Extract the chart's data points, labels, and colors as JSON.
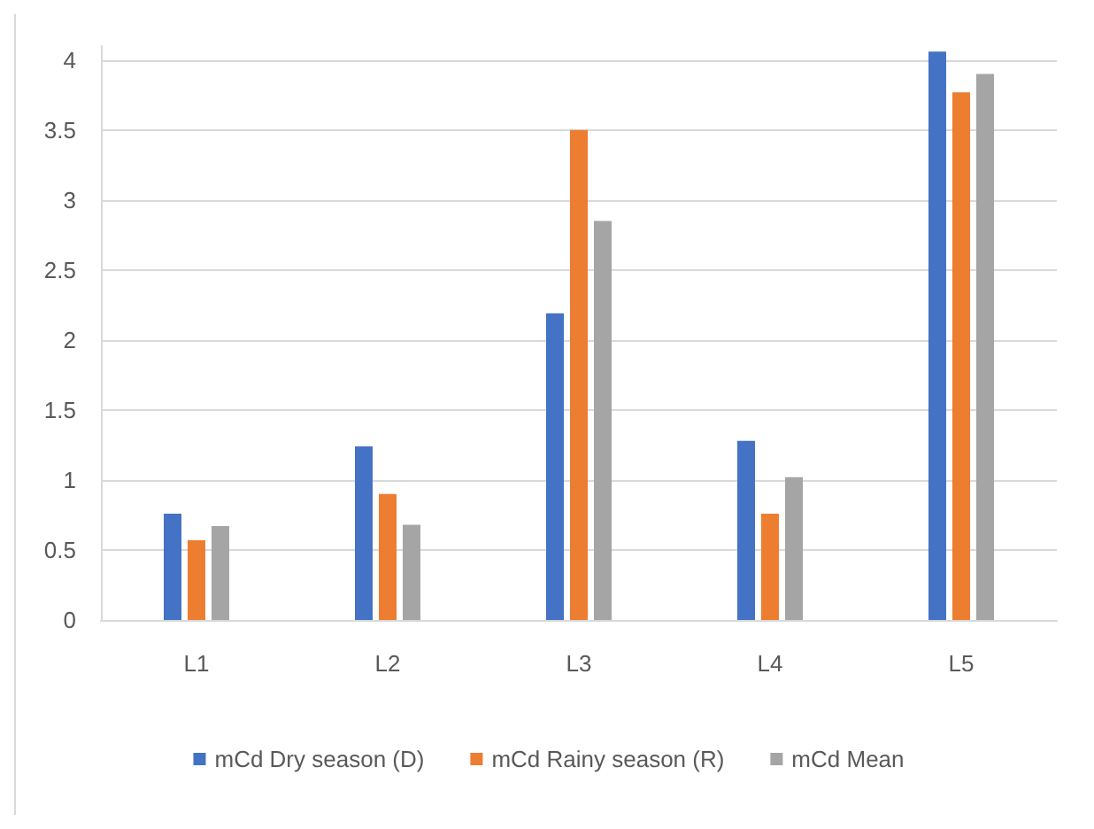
{
  "chart_data": {
    "type": "bar",
    "categories": [
      "L1",
      "L2",
      "L3",
      "L4",
      "L5"
    ],
    "series": [
      {
        "name": "mCd Dry season (D)",
        "color": "#4472c4",
        "values": [
          0.76,
          1.24,
          2.19,
          1.28,
          4.06
        ]
      },
      {
        "name": "mCd Rainy season (R)",
        "color": "#ed7d31",
        "values": [
          0.57,
          0.9,
          3.5,
          0.76,
          3.77
        ]
      },
      {
        "name": "mCd Mean",
        "color": "#a5a5a5",
        "values": [
          0.67,
          0.68,
          2.85,
          1.02,
          3.9
        ]
      }
    ],
    "ylim": [
      0,
      4.1
    ],
    "yticks": [
      0,
      0.5,
      1,
      1.5,
      2,
      2.5,
      3,
      3.5,
      4
    ],
    "grid": "y",
    "legend": "bottom"
  }
}
